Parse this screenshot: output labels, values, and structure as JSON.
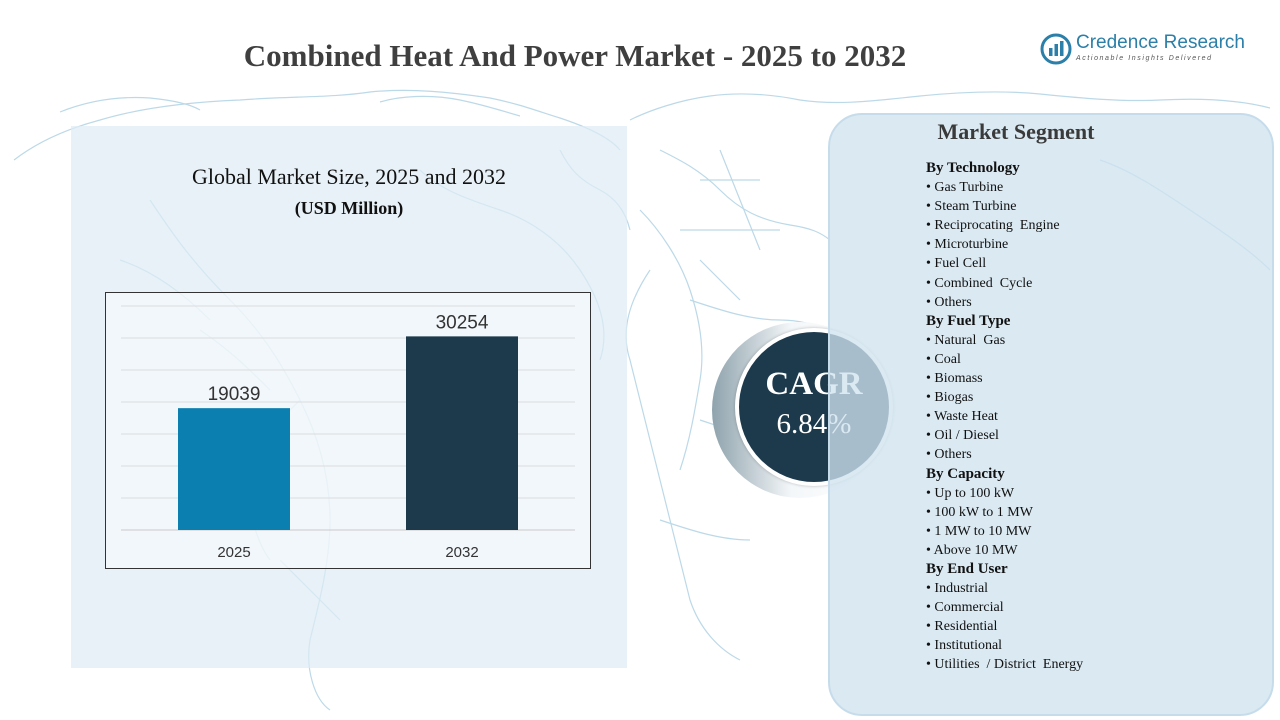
{
  "title": "Combined Heat And Power Market - 2025 to 2032",
  "logo": {
    "name": "Credence Research",
    "tagline": "Actionable Insights Delivered"
  },
  "colors": {
    "bar_2025": "#0a7fb0",
    "bar_2032": "#1d3a4d",
    "cagr_circle": "#1d3a4d",
    "panel": "#deebf4",
    "map_line": "#b9d7e6"
  },
  "chart_data": {
    "type": "bar",
    "title": "Global Market Size, 2025 and 2032",
    "unit": "(USD Million)",
    "categories": [
      "2025",
      "2032"
    ],
    "values": [
      19039,
      30254
    ],
    "data_labels": [
      "19039",
      "30254"
    ],
    "ylim": [
      0,
      35000
    ],
    "grid": true,
    "legend": "none"
  },
  "cagr": {
    "label": "CAGR",
    "value": "6.84%"
  },
  "segments": {
    "title": "Market Segment",
    "groups": [
      {
        "heading": "By Technology",
        "items": [
          "• Gas Turbine",
          "• Steam Turbine",
          "• Reciprocating  Engine",
          "• Microturbine",
          "• Fuel Cell",
          "• Combined  Cycle",
          "• Others"
        ]
      },
      {
        "heading": "By Fuel Type",
        "items": [
          "• Natural  Gas",
          "• Coal",
          "• Biomass",
          "• Biogas",
          "• Waste Heat",
          "• Oil / Diesel",
          "• Others"
        ]
      },
      {
        "heading": "By Capacity",
        "items": [
          "• Up to 100 kW",
          "• 100 kW to 1 MW",
          "• 1 MW to 10 MW",
          "• Above 10 MW"
        ]
      },
      {
        "heading": "By End User",
        "items": [
          "• Industrial",
          "• Commercial",
          "• Residential",
          "• Institutional",
          "• Utilities  / District  Energy"
        ]
      }
    ]
  }
}
